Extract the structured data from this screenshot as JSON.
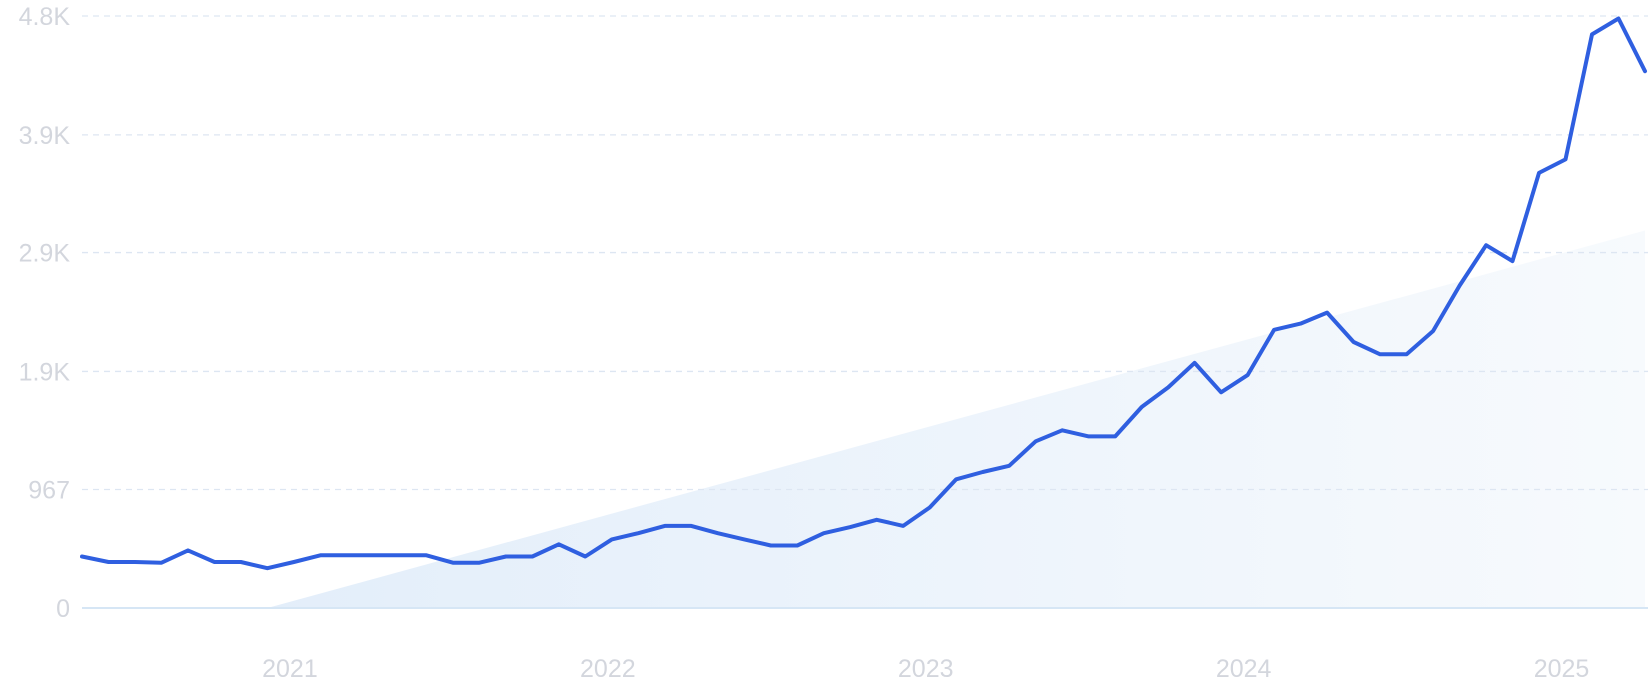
{
  "chart_data": {
    "type": "line",
    "title": "",
    "xlabel": "",
    "ylabel": "",
    "ylim": [
      0,
      4830
    ],
    "xlim": [
      "2020-05",
      "2025-04"
    ],
    "grid": true,
    "legend": "none",
    "y_ticks": [
      {
        "value": 0,
        "label": "0"
      },
      {
        "value": 967,
        "label": "967"
      },
      {
        "value": 1930,
        "label": "1.9K"
      },
      {
        "value": 2900,
        "label": "2.9K"
      },
      {
        "value": 3860,
        "label": "3.9K"
      },
      {
        "value": 4830,
        "label": "4.8K"
      }
    ],
    "x_ticks": [
      {
        "value": "2021-01",
        "label": "2021"
      },
      {
        "value": "2022-01",
        "label": "2022"
      },
      {
        "value": "2023-01",
        "label": "2023"
      },
      {
        "value": "2024-01",
        "label": "2024"
      },
      {
        "value": "2025-01",
        "label": "2025"
      }
    ],
    "colors": {
      "line": "#2f5fe0",
      "trend_fill": "#e6f0fb",
      "grid": "#dde6f2",
      "baseline": "#d6e6f5",
      "tick_text": "#d3d6dd"
    },
    "trend": {
      "type": "area",
      "x": [
        "2020-12",
        "2025-04"
      ],
      "y": [
        0,
        3080
      ]
    },
    "series": [
      {
        "x": [
          "2020-05",
          "2020-06",
          "2020-07",
          "2020-08",
          "2020-09",
          "2020-10",
          "2020-11",
          "2020-12",
          "2021-01",
          "2021-02",
          "2021-03",
          "2021-04",
          "2021-05",
          "2021-06",
          "2021-07",
          "2021-08",
          "2021-09",
          "2021-10",
          "2021-11",
          "2021-12",
          "2022-01",
          "2022-02",
          "2022-03",
          "2022-04",
          "2022-05",
          "2022-06",
          "2022-07",
          "2022-08",
          "2022-09",
          "2022-10",
          "2022-11",
          "2022-12",
          "2023-01",
          "2023-02",
          "2023-03",
          "2023-04",
          "2023-05",
          "2023-06",
          "2023-07",
          "2023-08",
          "2023-09",
          "2023-10",
          "2023-11",
          "2023-12",
          "2024-01",
          "2024-02",
          "2024-03",
          "2024-04",
          "2024-05",
          "2024-06",
          "2024-07",
          "2024-08",
          "2024-09",
          "2024-10",
          "2024-11",
          "2024-12",
          "2025-01",
          "2025-02",
          "2025-03",
          "2025-04"
        ],
        "values": [
          420,
          375,
          375,
          370,
          470,
          375,
          375,
          325,
          375,
          430,
          430,
          430,
          430,
          430,
          370,
          370,
          420,
          420,
          520,
          420,
          560,
          610,
          670,
          670,
          610,
          560,
          510,
          510,
          610,
          660,
          720,
          670,
          820,
          1050,
          1110,
          1160,
          1360,
          1450,
          1400,
          1400,
          1640,
          1800,
          2000,
          1760,
          1900,
          2270,
          2320,
          2410,
          2170,
          2070,
          2070,
          2260,
          2630,
          2960,
          2830,
          3550,
          3660,
          4680,
          4810,
          4380
        ]
      }
    ]
  }
}
